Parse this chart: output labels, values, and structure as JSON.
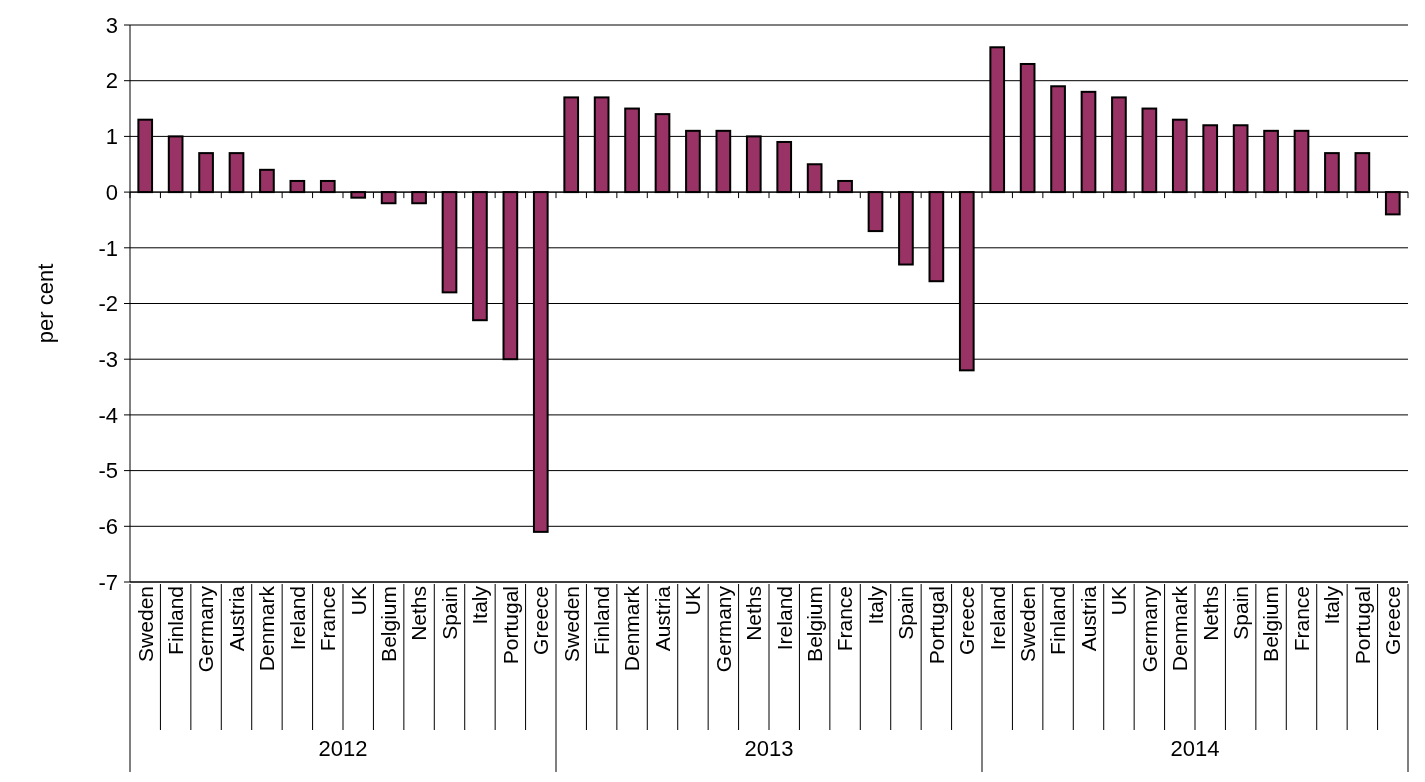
{
  "chart_data": {
    "type": "bar",
    "ylabel": "per cent",
    "categories": [
      "Sweden",
      "Finland",
      "Germany",
      "Austria",
      "Denmark",
      "Ireland",
      "France",
      "UK",
      "Belgium",
      "Neths",
      "Spain",
      "Italy",
      "Portugal",
      "Greece",
      "Sweden",
      "Finland",
      "Denmark",
      "Austria",
      "UK",
      "Germany",
      "Neths",
      "Ireland",
      "Belgium",
      "France",
      "Italy",
      "Spain",
      "Portugal",
      "Greece",
      "Ireland",
      "Sweden",
      "Finland",
      "Austria",
      "UK",
      "Germany",
      "Denmark",
      "Neths",
      "Spain",
      "Belgium",
      "France",
      "Italy",
      "Portugal",
      "Greece"
    ],
    "values": [
      1.3,
      1.0,
      0.7,
      0.7,
      0.4,
      0.2,
      0.2,
      -0.1,
      -0.2,
      -0.2,
      -1.8,
      -2.3,
      -3.0,
      -6.1,
      1.7,
      1.7,
      1.5,
      1.4,
      1.1,
      1.1,
      1.0,
      0.9,
      0.5,
      0.2,
      -0.7,
      -1.3,
      -1.6,
      -3.2,
      2.6,
      2.3,
      1.9,
      1.8,
      1.7,
      1.5,
      1.3,
      1.2,
      1.2,
      1.1,
      1.1,
      0.7,
      0.7,
      -0.4
    ],
    "color": "#993366",
    "annotations": [
      "2012",
      "2013",
      "2014"
    ],
    "ylim": [
      -7,
      3
    ],
    "yticks": [
      -7,
      -6,
      -5,
      -4,
      -3,
      -2,
      -1,
      0,
      1,
      2,
      3
    ],
    "grid": "y"
  }
}
